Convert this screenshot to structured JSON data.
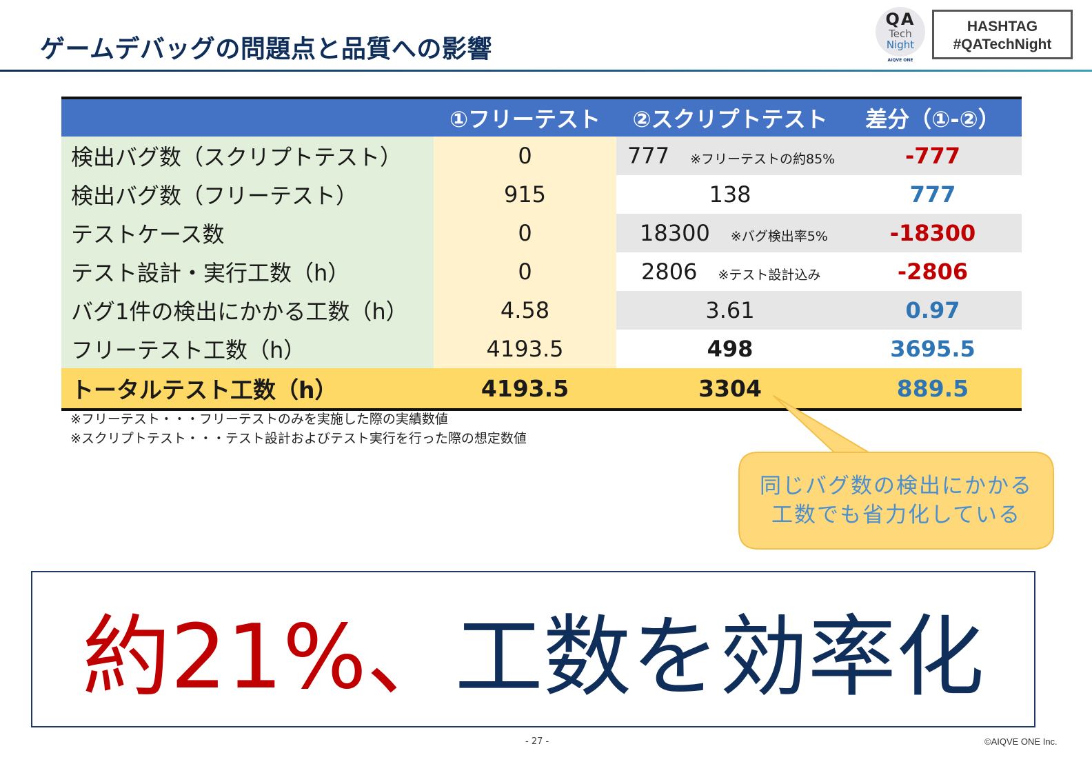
{
  "header": {
    "title": "ゲームデバッグの問題点と品質への影響",
    "logo": {
      "line1": "QA",
      "line2": "Tech",
      "line3": "Night",
      "brand": "AIQVE ONE"
    },
    "hashtag": {
      "line1": "HASHTAG",
      "line2": "#QATechNight"
    }
  },
  "table": {
    "columns": [
      "",
      "①フリーテスト",
      "②スクリプトテスト",
      "差分（①-②）"
    ],
    "rows": [
      {
        "label": "検出バグ数（スクリプトテスト）",
        "free": "0",
        "script": "777",
        "note": "※フリーテストの約85%",
        "diff": "-777",
        "diff_tone": "negative"
      },
      {
        "label": "検出バグ数（フリーテスト）",
        "free": "915",
        "script": "138",
        "note": "",
        "diff": "777",
        "diff_tone": "positive"
      },
      {
        "label": "テストケース数",
        "free": "0",
        "script": "18300",
        "note": "※バグ検出率5%",
        "diff": "-18300",
        "diff_tone": "negative"
      },
      {
        "label": "テスト設計・実行工数（h）",
        "free": "0",
        "script": "2806",
        "note": "※テスト設計込み",
        "diff": "-2806",
        "diff_tone": "negative"
      },
      {
        "label": "バグ1件の検出にかかる工数（h）",
        "free": "4.58",
        "script": "3.61",
        "note": "",
        "diff": "0.97",
        "diff_tone": "positive"
      },
      {
        "label": "フリーテスト工数（h）",
        "free": "4193.5",
        "script": "498",
        "note": "",
        "diff": "3695.5",
        "diff_tone": "positive"
      }
    ],
    "total": {
      "label": "トータルテスト工数（h）",
      "free": "4193.5",
      "script": "3304",
      "diff": "889.5"
    }
  },
  "footnotes": [
    "※フリーテスト・・・フリーテストのみを実施した際の実績数値",
    "※スクリプトテスト・・・テスト設計およびテスト実行を行った際の想定数値"
  ],
  "callout": {
    "line1": "同じバグ数の検出にかかる",
    "line2": "工数でも省力化している"
  },
  "conclusion": {
    "highlight": "約21%、",
    "rest": "工数を効率化"
  },
  "footer": {
    "page": "- 27 -",
    "copyright": "©AIQVE ONE Inc."
  },
  "colors": {
    "header_blue": "#4472c4",
    "label_green": "#e2efda",
    "free_yellow": "#fff2cc",
    "total_gold": "#ffd966",
    "negative_red": "#c00000",
    "positive_blue": "#2e75b6",
    "navy": "#0f2e5a"
  }
}
